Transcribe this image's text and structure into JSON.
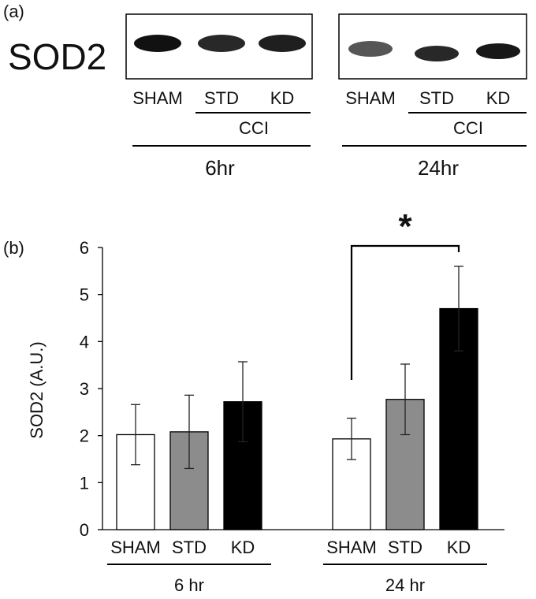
{
  "panel_a": {
    "label": "(a)",
    "protein": "SOD2",
    "blots": [
      {
        "lanes": [
          "SHAM",
          "STD",
          "KD"
        ],
        "group_label": "CCI",
        "time_label": "6hr",
        "band_intensity": [
          1.0,
          0.85,
          0.9
        ]
      },
      {
        "lanes": [
          "SHAM",
          "STD",
          "KD"
        ],
        "group_label": "CCI",
        "time_label": "24hr",
        "band_intensity": [
          0.55,
          0.85,
          0.95
        ]
      }
    ]
  },
  "panel_b": {
    "label": "(b)"
  },
  "chart_data": {
    "type": "bar",
    "title": "",
    "xlabel": "",
    "ylabel": "SOD2 (A.U.)",
    "ylim": [
      0,
      6
    ],
    "yticks": [
      0,
      1,
      2,
      3,
      4,
      5,
      6
    ],
    "groups": [
      {
        "label": "6 hr",
        "bars": [
          {
            "name": "SHAM",
            "value": 2.02,
            "error": 0.64,
            "color": "#ffffff"
          },
          {
            "name": "STD",
            "value": 2.08,
            "error": 0.78,
            "color": "#8c8c8c"
          },
          {
            "name": "KD",
            "value": 2.72,
            "error": 0.85,
            "color": "#000000"
          }
        ]
      },
      {
        "label": "24 hr",
        "bars": [
          {
            "name": "SHAM",
            "value": 1.93,
            "error": 0.44,
            "color": "#ffffff"
          },
          {
            "name": "STD",
            "value": 2.77,
            "error": 0.75,
            "color": "#8c8c8c"
          },
          {
            "name": "KD",
            "value": 4.7,
            "error": 0.9,
            "color": "#000000"
          }
        ]
      }
    ],
    "annotations": [
      {
        "text": "*",
        "type": "significance",
        "group": 1,
        "from_bar": 0,
        "to_bar": 2
      }
    ]
  }
}
